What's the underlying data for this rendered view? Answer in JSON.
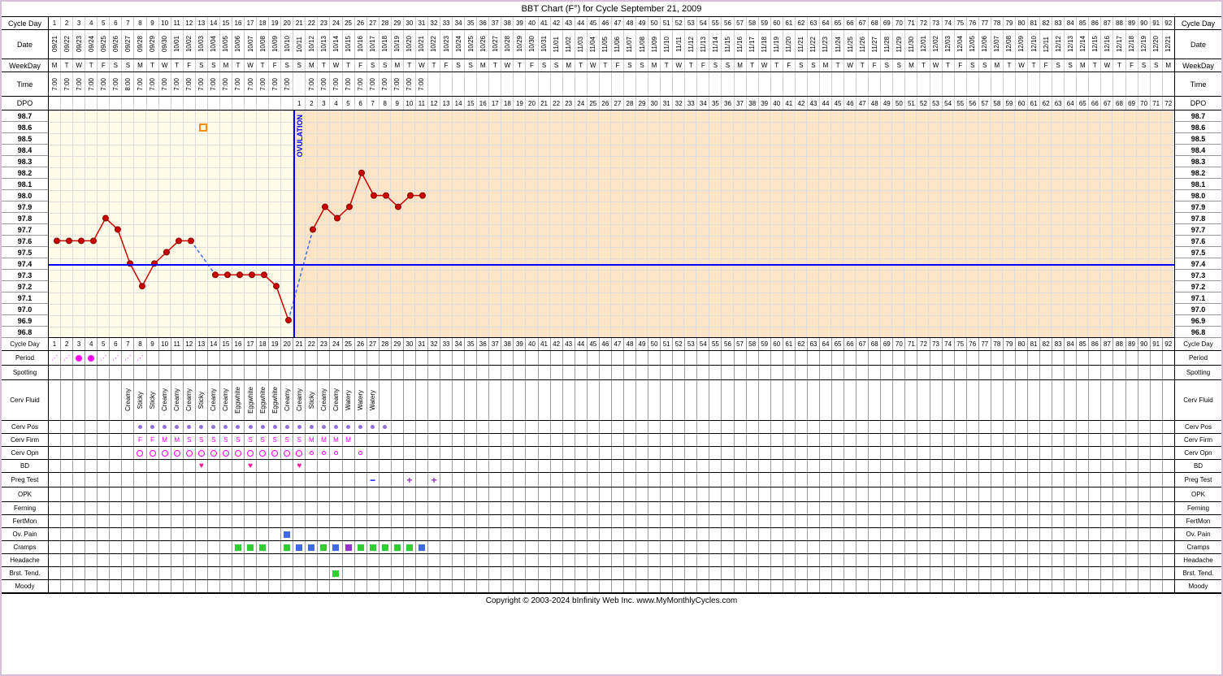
{
  "title": "BBT Chart (F°) for Cycle September 21, 2009",
  "footer": "Copyright © 2003-2024 bInfinity Web Inc.    www.MyMonthlyCycles.com",
  "num_days": 92,
  "ovulation_day": 20,
  "coverline_temp": 97.4,
  "temp_range": {
    "min": 96.8,
    "max": 98.7,
    "step": 0.1
  },
  "row_labels": {
    "cycle_day": "Cycle Day",
    "date": "Date",
    "weekday": "WeekDay",
    "time": "Time",
    "dpo": "DPO",
    "period": "Period",
    "spotting": "Spotting",
    "cerv_fluid": "Cerv Fluid",
    "cerv_pos": "Cerv Pos",
    "cerv_firm": "Cerv Firm",
    "cerv_opn": "Cerv Opn",
    "bd": "BD",
    "preg_test": "Preg Test",
    "opk": "OPK",
    "ferning": "Ferning",
    "fertmon": "FertMon",
    "ov_pain": "Ov. Pain",
    "cramps": "Cramps",
    "headache": "Headache",
    "brst_tend": "Brst. Tend.",
    "moody": "Moody"
  },
  "dates": [
    "09/21",
    "09/22",
    "09/23",
    "09/24",
    "09/25",
    "09/26",
    "09/27",
    "09/28",
    "09/29",
    "09/30",
    "10/01",
    "10/02",
    "10/03",
    "10/04",
    "10/05",
    "10/06",
    "10/07",
    "10/08",
    "10/09",
    "10/10",
    "10/11",
    "10/12",
    "10/13",
    "10/14",
    "10/15",
    "10/16",
    "10/17",
    "10/18",
    "10/19",
    "10/20",
    "10/21",
    "10/22",
    "10/23",
    "10/24",
    "10/25",
    "10/26",
    "10/27",
    "10/28",
    "10/29",
    "10/30",
    "10/31",
    "11/01",
    "11/02",
    "11/03",
    "11/04",
    "11/05",
    "11/06",
    "11/07",
    "11/08",
    "11/09",
    "11/10",
    "11/11",
    "11/12",
    "11/13",
    "11/14",
    "11/15",
    "11/16",
    "11/17",
    "11/18",
    "11/19",
    "11/20",
    "11/21",
    "11/22",
    "11/23",
    "11/24",
    "11/25",
    "11/26",
    "11/27",
    "11/28",
    "11/29",
    "11/30",
    "12/01",
    "12/02",
    "12/03",
    "12/04",
    "12/05",
    "12/06",
    "12/07",
    "12/08",
    "12/09",
    "12/10",
    "12/11",
    "12/12",
    "12/13",
    "12/14",
    "12/15",
    "12/16",
    "12/17",
    "12/18",
    "12/19",
    "12/20",
    "12/21"
  ],
  "weekdays": [
    "M",
    "T",
    "W",
    "T",
    "F",
    "S",
    "S",
    "M",
    "T",
    "W",
    "T",
    "F",
    "S",
    "S",
    "M",
    "T",
    "W",
    "T",
    "F",
    "S",
    "S",
    "M",
    "T",
    "W",
    "T",
    "F",
    "S",
    "S",
    "M",
    "T",
    "W",
    "T",
    "F",
    "S",
    "S",
    "M",
    "T",
    "W",
    "T",
    "F",
    "S",
    "S",
    "M",
    "T",
    "W",
    "T",
    "F",
    "S",
    "S",
    "M",
    "T",
    "W",
    "T",
    "F",
    "S",
    "S",
    "M",
    "T",
    "W",
    "T",
    "F",
    "S",
    "S",
    "M",
    "T",
    "W",
    "T",
    "F",
    "S",
    "S",
    "M",
    "T",
    "W",
    "T",
    "F",
    "S",
    "S",
    "M",
    "T",
    "W",
    "T",
    "F",
    "S",
    "S",
    "M",
    "T",
    "W",
    "T",
    "F",
    "S",
    "S",
    "M"
  ],
  "times": [
    "7:00",
    "7:00",
    "7:00",
    "7:00",
    "7:00",
    "7:00",
    "8:00",
    "7:00",
    "7:00",
    "7:00",
    "7:00",
    "7:00",
    "7:00",
    "7:00",
    "7:00",
    "7:00",
    "7:00",
    "7:00",
    "7:00",
    "7:00",
    "",
    "7:00",
    "7:00",
    "7:00",
    "7:00",
    "7:00",
    "7:00",
    "7:00",
    "7:00",
    "7:00",
    "7:00"
  ],
  "temps": [
    {
      "day": 1,
      "temp": 97.6
    },
    {
      "day": 2,
      "temp": 97.6
    },
    {
      "day": 3,
      "temp": 97.6
    },
    {
      "day": 4,
      "temp": 97.6
    },
    {
      "day": 5,
      "temp": 97.8
    },
    {
      "day": 6,
      "temp": 97.7
    },
    {
      "day": 7,
      "temp": 97.4
    },
    {
      "day": 8,
      "temp": 97.2
    },
    {
      "day": 9,
      "temp": 97.4
    },
    {
      "day": 10,
      "temp": 97.5
    },
    {
      "day": 11,
      "temp": 97.6
    },
    {
      "day": 12,
      "temp": 97.6
    },
    {
      "day": 14,
      "temp": 97.3
    },
    {
      "day": 15,
      "temp": 97.3
    },
    {
      "day": 16,
      "temp": 97.3
    },
    {
      "day": 17,
      "temp": 97.3
    },
    {
      "day": 18,
      "temp": 97.3
    },
    {
      "day": 19,
      "temp": 97.2
    },
    {
      "day": 20,
      "temp": 96.9
    },
    {
      "day": 22,
      "temp": 97.7
    },
    {
      "day": 23,
      "temp": 97.9
    },
    {
      "day": 24,
      "temp": 97.8
    },
    {
      "day": 25,
      "temp": 97.9
    },
    {
      "day": 26,
      "temp": 98.2
    },
    {
      "day": 27,
      "temp": 98.0
    },
    {
      "day": 28,
      "temp": 98.0
    },
    {
      "day": 29,
      "temp": 97.9
    },
    {
      "day": 30,
      "temp": 98.0
    },
    {
      "day": 31,
      "temp": 98.0
    }
  ],
  "temp_outlier": {
    "day": 13,
    "temp": 98.6
  },
  "chart_colors": {
    "line": "#cc0000",
    "point_fill": "#cc0000",
    "point_stroke": "#800000",
    "dashed": "#4169e1",
    "pre_ov_bg": "#fffde7",
    "post_ov_bg": "#fce5c7",
    "coverline": "#0000ff",
    "ov_line": "#0000ff"
  },
  "period": {
    "1": "light",
    "2": "light",
    "3": "heavy",
    "4": "heavy",
    "5": "light",
    "6": "light",
    "7": "light",
    "8": "light"
  },
  "cerv_fluid": {
    "7": "Creamy",
    "8": "Sticky",
    "9": "Sticky",
    "10": "Creamy",
    "11": "Creamy",
    "12": "Creamy",
    "13": "Sticky",
    "14": "Creamy",
    "15": "Creamy",
    "16": "Eggwhite",
    "17": "Eggwhite",
    "18": "Eggwhite",
    "19": "Eggwhite",
    "20": "Creamy",
    "21": "Creamy",
    "22": "Sticky",
    "23": "Creamy",
    "24": "Creamy",
    "25": "Watery",
    "26": "Watery",
    "27": "Watery"
  },
  "cerv_pos": {
    "8": 1,
    "9": 1,
    "10": 1,
    "11": 1,
    "12": 1,
    "13": 1,
    "14": 1,
    "15": 1,
    "16": 1,
    "17": 1,
    "18": 1,
    "19": 1,
    "20": 1,
    "21": 1,
    "22": 1,
    "23": 1,
    "24": 1,
    "25": 1,
    "26": 1,
    "27": 1,
    "28": 1
  },
  "cerv_firm": {
    "8": "F",
    "9": "F",
    "10": "M",
    "11": "M",
    "12": "S",
    "13": "S",
    "14": "S",
    "15": "S",
    "16": "S",
    "17": "S",
    "18": "S",
    "19": "S",
    "20": "S",
    "21": "S",
    "22": "M",
    "23": "M",
    "24": "M",
    "25": "M"
  },
  "cerv_opn": {
    "8": "O",
    "9": "O",
    "10": "O",
    "11": "O",
    "12": "O",
    "13": "O",
    "14": "O",
    "15": "O",
    "16": "O",
    "17": "O",
    "18": "O",
    "19": "O",
    "20": "O",
    "21": "O",
    "22": "o",
    "23": "o",
    "24": "o",
    "26": "o"
  },
  "bd": {
    "13": 1,
    "17": 1,
    "21": 1
  },
  "preg_test": {
    "27": "-",
    "30": "+",
    "32": "+"
  },
  "ov_pain": {
    "20": "b"
  },
  "cramps": {
    "16": "g",
    "17": "g",
    "18": "g",
    "20": "g",
    "21": "b",
    "22": "b",
    "23": "g",
    "24": "b",
    "25": "p",
    "26": "g",
    "27": "g",
    "28": "g",
    "29": "g",
    "30": "g",
    "31": "b"
  },
  "brst_tend": {
    "24": "g"
  }
}
